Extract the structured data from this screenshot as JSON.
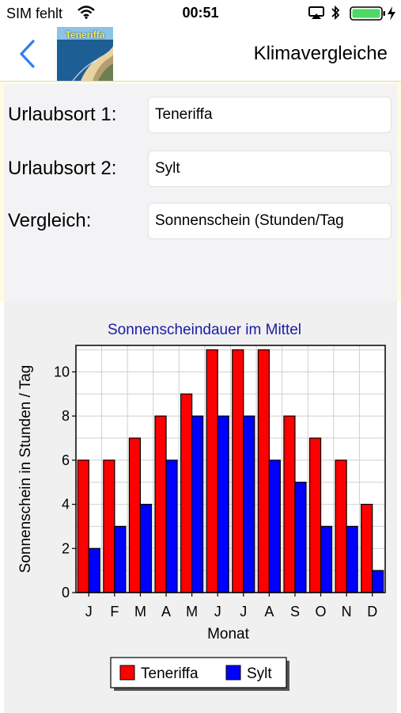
{
  "status": {
    "carrier": "SIM fehlt",
    "time": "00:51",
    "icons": [
      "wifi-icon",
      "airplay-icon",
      "bluetooth-icon",
      "battery-icon",
      "charging-bolt-icon"
    ],
    "battery_color": "#4cd964"
  },
  "nav": {
    "back_icon": "chevron-left-icon",
    "thumbnail_label": "Teneriffa",
    "title": "Klimavergleiche"
  },
  "form": {
    "rows": [
      {
        "label": "Urlaubsort 1:",
        "value": "Teneriffa"
      },
      {
        "label": "Urlaubsort 2:",
        "value": "Sylt"
      },
      {
        "label": "Vergleich:",
        "value": "Sonnenschein (Stunden/Tag"
      }
    ]
  },
  "chart_data": {
    "type": "bar",
    "title": "Sonnenscheindauer im Mittel",
    "xlabel": "Monat",
    "ylabel": "Sonnenschein in Stunden / Tag",
    "categories": [
      "J",
      "F",
      "M",
      "A",
      "M",
      "J",
      "J",
      "A",
      "S",
      "O",
      "N",
      "D"
    ],
    "series": [
      {
        "name": "Teneriffa",
        "color": "#ff0000",
        "values": [
          6,
          6,
          7,
          8,
          9,
          11,
          11,
          11,
          8,
          7,
          6,
          4
        ]
      },
      {
        "name": "Sylt",
        "color": "#0000ff",
        "values": [
          2,
          3,
          4,
          6,
          8,
          8,
          8,
          6,
          5,
          3,
          3,
          1
        ]
      }
    ],
    "ylim": [
      0,
      11.2
    ],
    "yticks": [
      0,
      2,
      4,
      6,
      8,
      10
    ],
    "grid": true,
    "legend": "bottom-center",
    "title_color": "#1a1aa6"
  }
}
